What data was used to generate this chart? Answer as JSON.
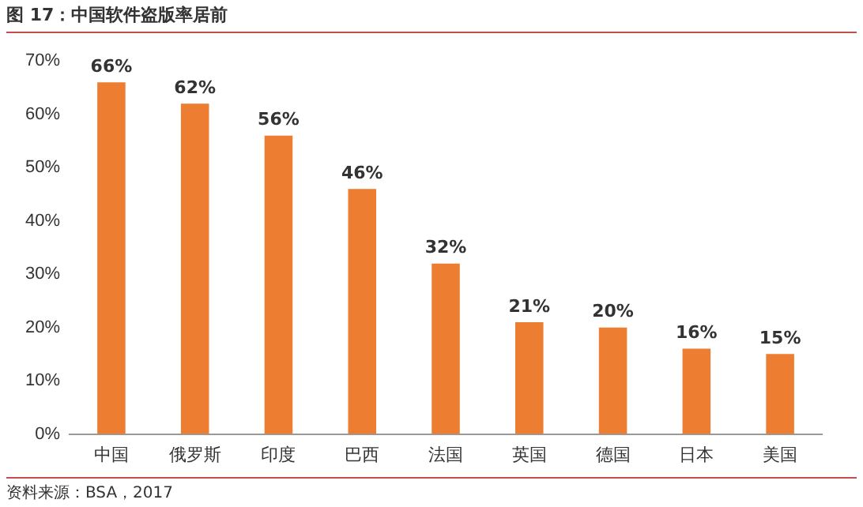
{
  "chart_data": {
    "type": "bar",
    "title": "图 17：中国软件盗版率居前",
    "categories": [
      "中国",
      "俄罗斯",
      "印度",
      "巴西",
      "法国",
      "英国",
      "德国",
      "日本",
      "美国"
    ],
    "values": [
      66,
      62,
      56,
      46,
      32,
      21,
      20,
      16,
      15
    ],
    "value_labels": [
      "66%",
      "62%",
      "56%",
      "46%",
      "32%",
      "21%",
      "20%",
      "16%",
      "15%"
    ],
    "color": "#ed7d31",
    "ylim": [
      0,
      70
    ],
    "yticks": [
      {
        "value": 0,
        "label": "0%"
      },
      {
        "value": 10,
        "label": "10%"
      },
      {
        "value": 20,
        "label": "20%"
      },
      {
        "value": 30,
        "label": "30%"
      },
      {
        "value": 40,
        "label": "40%"
      },
      {
        "value": 50,
        "label": "50%"
      },
      {
        "value": 60,
        "label": "60%"
      },
      {
        "value": 70,
        "label": "70%"
      }
    ],
    "grid": false,
    "legend": false,
    "annotations": [
      "资料来源：BSA，2017"
    ]
  }
}
